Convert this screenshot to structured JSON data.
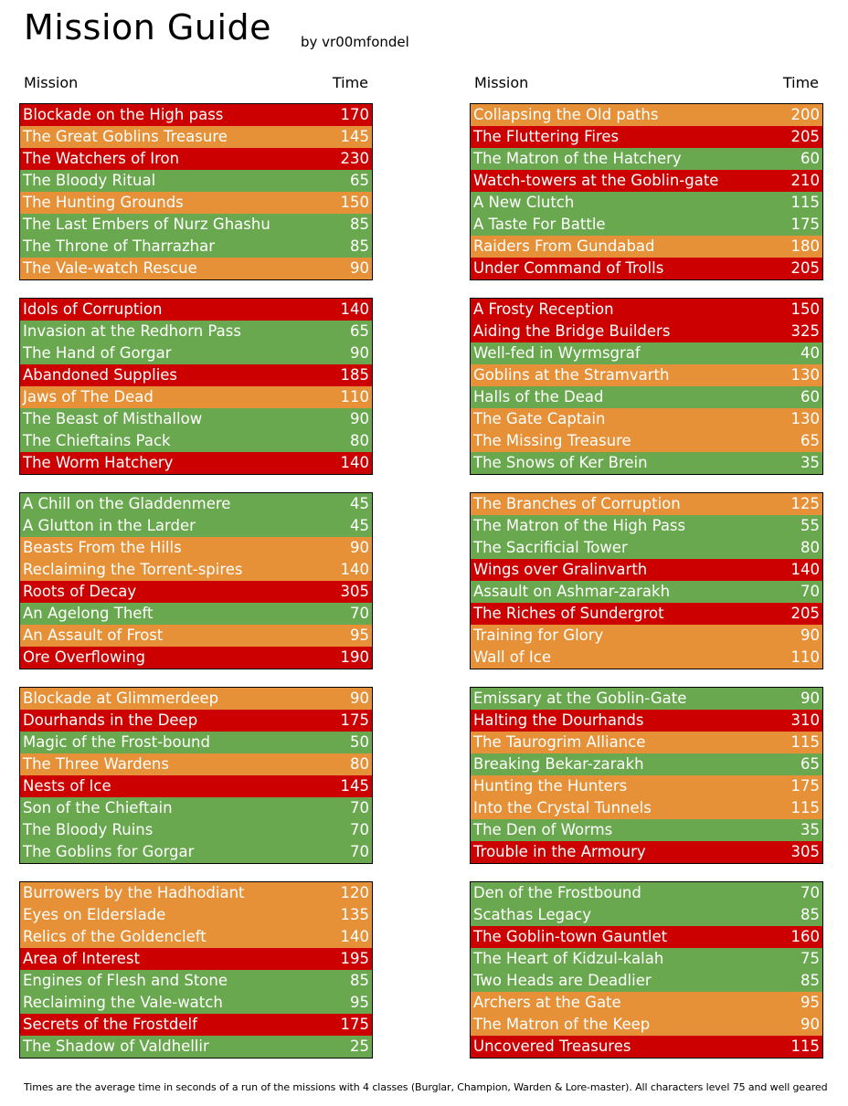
{
  "title": "Mission Guide",
  "byline": "by vr00mfondel",
  "header": {
    "mission": "Mission",
    "time": "Time"
  },
  "colors": {
    "red": "#cc0000",
    "orange": "#e69138",
    "green": "#6aa84f"
  },
  "left_groups": [
    [
      {
        "name": "Blockade on the High pass",
        "time": "170",
        "color": "red"
      },
      {
        "name": "The Great Goblins Treasure",
        "time": "145",
        "color": "orange"
      },
      {
        "name": "The Watchers of Iron",
        "time": "230",
        "color": "red"
      },
      {
        "name": "The Bloody Ritual",
        "time": "65",
        "color": "green"
      },
      {
        "name": "The Hunting Grounds",
        "time": "150",
        "color": "orange"
      },
      {
        "name": "The Last Embers of Nurz Ghashu",
        "time": "85",
        "color": "green"
      },
      {
        "name": "The Throne of Tharrazhar",
        "time": "85",
        "color": "green"
      },
      {
        "name": "The Vale-watch Rescue",
        "time": "90",
        "color": "orange"
      }
    ],
    [
      {
        "name": "Idols of Corruption",
        "time": "140",
        "color": "red"
      },
      {
        "name": "Invasion at the Redhorn Pass",
        "time": "65",
        "color": "green"
      },
      {
        "name": "The Hand of Gorgar",
        "time": "90",
        "color": "green"
      },
      {
        "name": "Abandoned Supplies",
        "time": "185",
        "color": "red"
      },
      {
        "name": "Jaws of The Dead",
        "time": "110",
        "color": "orange"
      },
      {
        "name": "The Beast of Misthallow",
        "time": "90",
        "color": "green"
      },
      {
        "name": "The Chieftains Pack",
        "time": "80",
        "color": "green"
      },
      {
        "name": "The Worm Hatchery",
        "time": "140",
        "color": "red"
      }
    ],
    [
      {
        "name": "A Chill on the Gladdenmere",
        "time": "45",
        "color": "green"
      },
      {
        "name": "A Glutton in the Larder",
        "time": "45",
        "color": "green"
      },
      {
        "name": "Beasts From the Hills",
        "time": "90",
        "color": "orange"
      },
      {
        "name": "Reclaiming the Torrent-spires",
        "time": "140",
        "color": "orange"
      },
      {
        "name": "Roots of Decay",
        "time": "305",
        "color": "red"
      },
      {
        "name": "An Agelong Theft",
        "time": "70",
        "color": "green"
      },
      {
        "name": "An Assault of Frost",
        "time": "95",
        "color": "orange"
      },
      {
        "name": "Ore Overflowing",
        "time": "190",
        "color": "red"
      }
    ],
    [
      {
        "name": "Blockade at Glimmerdeep",
        "time": "90",
        "color": "orange"
      },
      {
        "name": "Dourhands in the Deep",
        "time": "175",
        "color": "red"
      },
      {
        "name": "Magic of the Frost-bound",
        "time": "50",
        "color": "green"
      },
      {
        "name": "The Three Wardens",
        "time": "80",
        "color": "orange"
      },
      {
        "name": "Nests of Ice",
        "time": "145",
        "color": "red"
      },
      {
        "name": "Son of the Chieftain",
        "time": "70",
        "color": "green"
      },
      {
        "name": "The Bloody Ruins",
        "time": "70",
        "color": "green"
      },
      {
        "name": "The Goblins for Gorgar",
        "time": "70",
        "color": "green"
      }
    ],
    [
      {
        "name": "Burrowers by the Hadhodiant",
        "time": "120",
        "color": "orange"
      },
      {
        "name": "Eyes on Elderslade",
        "time": "135",
        "color": "orange"
      },
      {
        "name": "Relics of the Goldencleft",
        "time": "140",
        "color": "orange"
      },
      {
        "name": "Area of Interest",
        "time": "195",
        "color": "red"
      },
      {
        "name": "Engines of Flesh and Stone",
        "time": "85",
        "color": "green"
      },
      {
        "name": "Reclaiming the Vale-watch",
        "time": "95",
        "color": "green"
      },
      {
        "name": "Secrets of the Frostdelf",
        "time": "175",
        "color": "red"
      },
      {
        "name": "The Shadow of Valdhellir",
        "time": "25",
        "color": "green"
      }
    ]
  ],
  "right_groups": [
    [
      {
        "name": "Collapsing the Old paths",
        "time": "200",
        "color": "orange"
      },
      {
        "name": "The Fluttering Fires",
        "time": "205",
        "color": "red"
      },
      {
        "name": "The Matron of the Hatchery",
        "time": "60",
        "color": "green"
      },
      {
        "name": "Watch-towers at the Goblin-gate",
        "time": "210",
        "color": "red"
      },
      {
        "name": "A New Clutch",
        "time": "115",
        "color": "green"
      },
      {
        "name": "A Taste For Battle",
        "time": "175",
        "color": "green"
      },
      {
        "name": "Raiders From Gundabad",
        "time": "180",
        "color": "orange"
      },
      {
        "name": "Under Command of Trolls",
        "time": "205",
        "color": "red"
      }
    ],
    [
      {
        "name": "A Frosty Reception",
        "time": "150",
        "color": "red"
      },
      {
        "name": "Aiding the Bridge Builders",
        "time": "325",
        "color": "red"
      },
      {
        "name": "Well-fed in Wyrmsgraf",
        "time": "40",
        "color": "green"
      },
      {
        "name": "Goblins at the Stramvarth",
        "time": "130",
        "color": "orange"
      },
      {
        "name": "Halls of the Dead",
        "time": "60",
        "color": "green"
      },
      {
        "name": "The Gate Captain",
        "time": "130",
        "color": "orange"
      },
      {
        "name": "The Missing Treasure",
        "time": "65",
        "color": "orange"
      },
      {
        "name": "The Snows of Ker Brein",
        "time": "35",
        "color": "green"
      }
    ],
    [
      {
        "name": "The Branches of Corruption",
        "time": "125",
        "color": "orange"
      },
      {
        "name": "The Matron of the High Pass",
        "time": "55",
        "color": "green"
      },
      {
        "name": "The Sacrificial Tower",
        "time": "80",
        "color": "green"
      },
      {
        "name": "Wings over Gralinvarth",
        "time": "140",
        "color": "red"
      },
      {
        "name": "Assault on Ashmar-zarakh",
        "time": "70",
        "color": "green"
      },
      {
        "name": "The Riches of Sundergrot",
        "time": "205",
        "color": "red"
      },
      {
        "name": "Training for Glory",
        "time": "90",
        "color": "orange"
      },
      {
        "name": "Wall of Ice",
        "time": "110",
        "color": "orange"
      }
    ],
    [
      {
        "name": "Emissary at the Goblin-Gate",
        "time": "90",
        "color": "green"
      },
      {
        "name": "Halting the Dourhands",
        "time": "310",
        "color": "red"
      },
      {
        "name": "The Taurogrim Alliance",
        "time": "115",
        "color": "orange"
      },
      {
        "name": "Breaking Bekar-zarakh",
        "time": "65",
        "color": "green"
      },
      {
        "name": "Hunting the Hunters",
        "time": "175",
        "color": "orange"
      },
      {
        "name": "Into the Crystal Tunnels",
        "time": "115",
        "color": "orange"
      },
      {
        "name": "The Den of Worms",
        "time": "35",
        "color": "green"
      },
      {
        "name": "Trouble in the Armoury",
        "time": "305",
        "color": "red"
      }
    ],
    [
      {
        "name": "Den of the Frostbound",
        "time": "70",
        "color": "green"
      },
      {
        "name": "Scathas Legacy",
        "time": "85",
        "color": "green"
      },
      {
        "name": "The Goblin-town Gauntlet",
        "time": "160",
        "color": "red"
      },
      {
        "name": "The Heart of Kidzul-kalah",
        "time": "75",
        "color": "green"
      },
      {
        "name": "Two Heads are Deadlier",
        "time": "85",
        "color": "green"
      },
      {
        "name": "Archers at the Gate",
        "time": "95",
        "color": "orange"
      },
      {
        "name": "The Matron of the Keep",
        "time": "90",
        "color": "orange"
      },
      {
        "name": "Uncovered Treasures",
        "time": "115",
        "color": "red"
      }
    ]
  ],
  "footer": "Times are the average time in seconds of a run of the missions with 4 classes (Burglar, Champion, Warden & Lore-master). All characters level 75 and well geared"
}
